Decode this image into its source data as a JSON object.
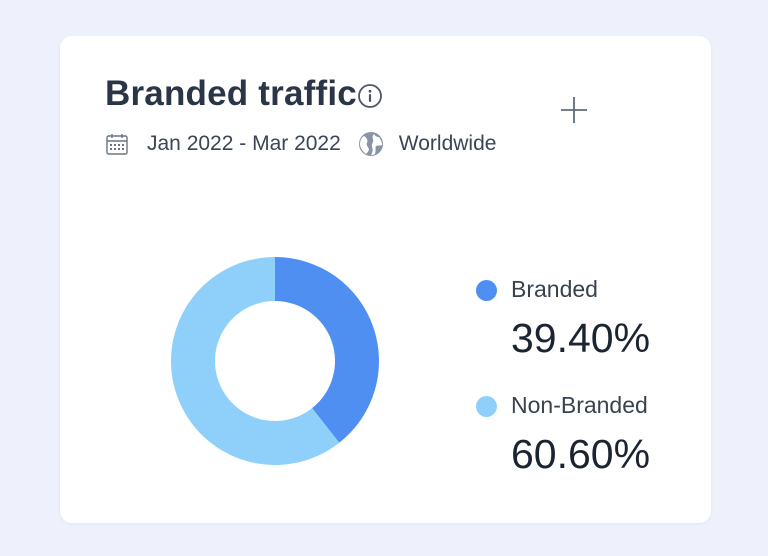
{
  "card": {
    "title": "Branded traffic",
    "date_range": "Jan 2022 - Mar 2022",
    "region": "Worldwide",
    "icons": {
      "info": "info-icon",
      "add": "plus-icon",
      "calendar": "calendar-icon",
      "globe": "globe-icon"
    }
  },
  "chart_data": {
    "type": "pie",
    "variant": "donut",
    "series": [
      {
        "name": "Branded",
        "value": 39.4,
        "label": "39.40%",
        "color": "#4f8ff2"
      },
      {
        "name": "Non-Branded",
        "value": 60.6,
        "label": "60.60%",
        "color": "#8fd0fb"
      }
    ],
    "legend_position": "right"
  }
}
